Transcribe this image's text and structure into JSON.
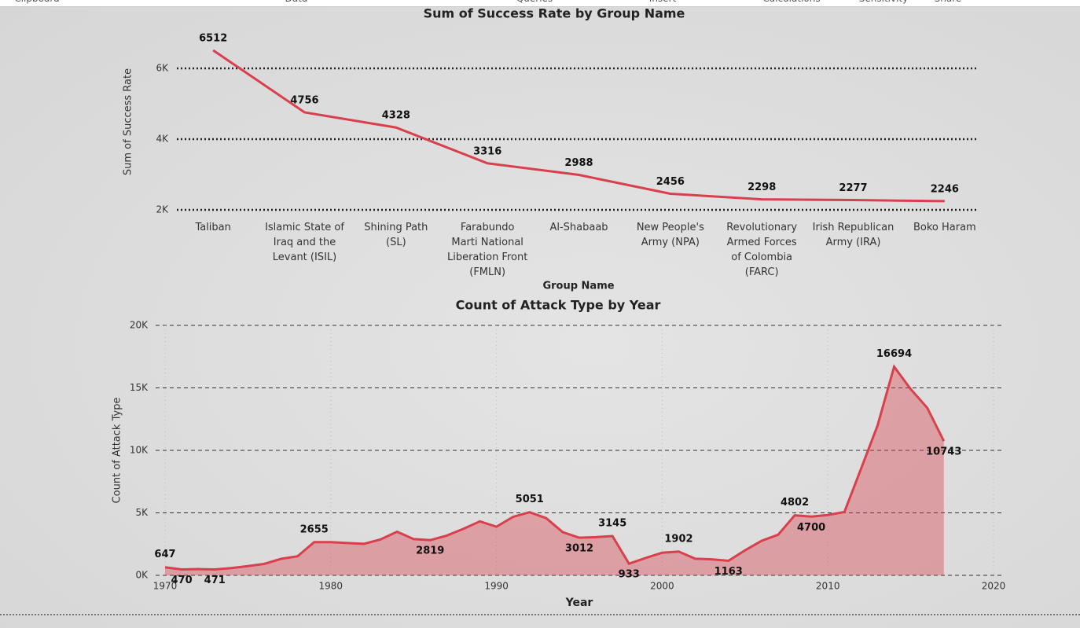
{
  "ribbon": [
    "Clipboard",
    "Data",
    "Queries",
    "Insert",
    "Calculations",
    "Sensitivity",
    "Share"
  ],
  "chart_data": [
    {
      "type": "line",
      "title": "Sum of Success Rate by Group Name",
      "x_label": "Group Name",
      "y_label": "Sum of Success Rate",
      "categories": [
        "Taliban",
        "Islamic State of Iraq and the Levant (ISIL)",
        "Shining Path (SL)",
        "Farabundo Marti National Liberation Front (FMLN)",
        "Al-Shabaab",
        "New People's Army (NPA)",
        "Revolutionary Armed Forces of Colombia (FARC)",
        "Irish Republican Army (IRA)",
        "Boko Haram"
      ],
      "values": [
        6512,
        4756,
        4328,
        3316,
        2988,
        2456,
        2298,
        2277,
        2246
      ],
      "color": "#d9404d",
      "ylim": [
        2000,
        6600
      ],
      "yticks": [
        {
          "value": 2000,
          "label": "2K"
        },
        {
          "value": 4000,
          "label": "4K"
        },
        {
          "value": 6000,
          "label": "6K"
        }
      ],
      "grid": true
    },
    {
      "type": "area",
      "title": "Count of Attack Type by Year",
      "x_label": "Year",
      "y_label": "Count of Attack Type",
      "x": [
        1970,
        1971,
        1972,
        1973,
        1974,
        1975,
        1976,
        1977,
        1978,
        1979,
        1980,
        1981,
        1982,
        1983,
        1984,
        1985,
        1986,
        1987,
        1988,
        1989,
        1990,
        1991,
        1992,
        1993,
        1994,
        1995,
        1996,
        1997,
        1998,
        1999,
        2000,
        2001,
        2002,
        2003,
        2004,
        2005,
        2006,
        2007,
        2008,
        2009,
        2010,
        2011,
        2012,
        2013,
        2014,
        2015,
        2016,
        2017
      ],
      "values": [
        647,
        470,
        500,
        471,
        580,
        740,
        920,
        1320,
        1530,
        2655,
        2660,
        2590,
        2520,
        2870,
        3490,
        2900,
        2819,
        3180,
        3720,
        4320,
        3890,
        4680,
        5051,
        4580,
        3460,
        3012,
        3060,
        3145,
        933,
        1390,
        1810,
        1902,
        1330,
        1280,
        1163,
        2000,
        2760,
        3250,
        4802,
        4700,
        4830,
        5070,
        8520,
        11990,
        16694,
        14900,
        13400,
        10743
      ],
      "value_labels": [
        "647",
        "470",
        null,
        "471",
        null,
        null,
        null,
        null,
        null,
        "2655",
        null,
        null,
        null,
        null,
        null,
        null,
        "2819",
        null,
        null,
        null,
        null,
        null,
        "5051",
        null,
        null,
        "3012",
        null,
        "3145",
        "933",
        null,
        null,
        "1902",
        null,
        null,
        "1163",
        null,
        null,
        null,
        "4802",
        "4700",
        null,
        null,
        null,
        null,
        "16694",
        null,
        null,
        "10743"
      ],
      "color": "#d9404d",
      "xlim": [
        1970,
        2020
      ],
      "xticks": [
        1970,
        1980,
        1990,
        2000,
        2010,
        2020
      ],
      "ylim": [
        0,
        20000
      ],
      "yticks": [
        {
          "value": 0,
          "label": "0K"
        },
        {
          "value": 5000,
          "label": "5K"
        },
        {
          "value": 10000,
          "label": "10K"
        },
        {
          "value": 15000,
          "label": "15K"
        },
        {
          "value": 20000,
          "label": "20K"
        }
      ],
      "grid": true
    }
  ]
}
